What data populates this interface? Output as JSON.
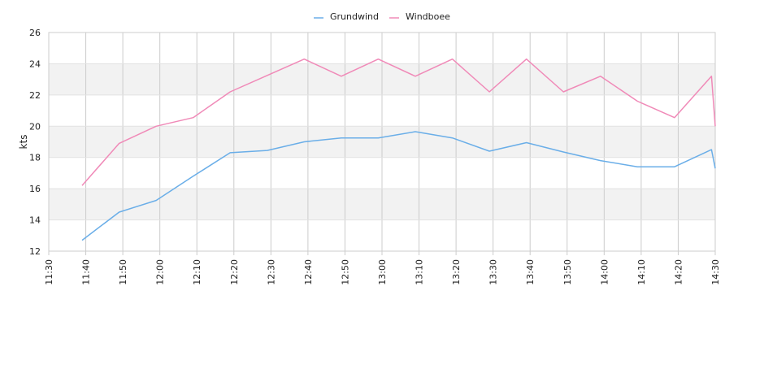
{
  "chart_data": {
    "type": "line",
    "title": "",
    "xlabel": "",
    "ylabel": "kts",
    "x": [
      "11:30",
      "11:40",
      "11:50",
      "12:00",
      "12:10",
      "12:20",
      "12:30",
      "12:40",
      "12:50",
      "13:00",
      "13:10",
      "13:20",
      "13:30",
      "13:40",
      "13:50",
      "14:00",
      "14:10",
      "14:20",
      "14:30"
    ],
    "ylim": [
      12,
      26
    ],
    "yticks": [
      12,
      14,
      16,
      18,
      20,
      22,
      24,
      26
    ],
    "grid": true,
    "legend_position": "top-center",
    "series": [
      {
        "name": "Grundwind",
        "color": "#6aaee8",
        "points": [
          [
            "11:39",
            12.7
          ],
          [
            "11:49",
            14.5
          ],
          [
            "11:59",
            15.25
          ],
          [
            "12:09",
            16.8
          ],
          [
            "12:19",
            18.3
          ],
          [
            "12:29",
            18.45
          ],
          [
            "12:39",
            19.0
          ],
          [
            "12:49",
            19.25
          ],
          [
            "12:59",
            19.25
          ],
          [
            "13:09",
            19.65
          ],
          [
            "13:19",
            19.25
          ],
          [
            "13:29",
            18.4
          ],
          [
            "13:39",
            18.95
          ],
          [
            "13:49",
            18.35
          ],
          [
            "13:59",
            17.8
          ],
          [
            "14:09",
            17.4
          ],
          [
            "14:19",
            17.4
          ],
          [
            "14:29",
            18.5
          ],
          [
            "14:30",
            17.3
          ]
        ]
      },
      {
        "name": "Windboee",
        "color": "#f08ab8",
        "points": [
          [
            "11:39",
            16.2
          ],
          [
            "11:49",
            18.9
          ],
          [
            "11:59",
            20.0
          ],
          [
            "12:09",
            20.55
          ],
          [
            "12:19",
            22.2
          ],
          [
            "12:29",
            23.25
          ],
          [
            "12:39",
            24.3
          ],
          [
            "12:49",
            23.2
          ],
          [
            "12:59",
            24.3
          ],
          [
            "13:09",
            23.2
          ],
          [
            "13:19",
            24.3
          ],
          [
            "13:29",
            22.2
          ],
          [
            "13:39",
            24.3
          ],
          [
            "13:49",
            22.2
          ],
          [
            "13:59",
            23.2
          ],
          [
            "14:09",
            21.6
          ],
          [
            "14:19",
            20.55
          ],
          [
            "14:29",
            23.2
          ],
          [
            "14:30",
            20.0
          ]
        ]
      }
    ]
  }
}
